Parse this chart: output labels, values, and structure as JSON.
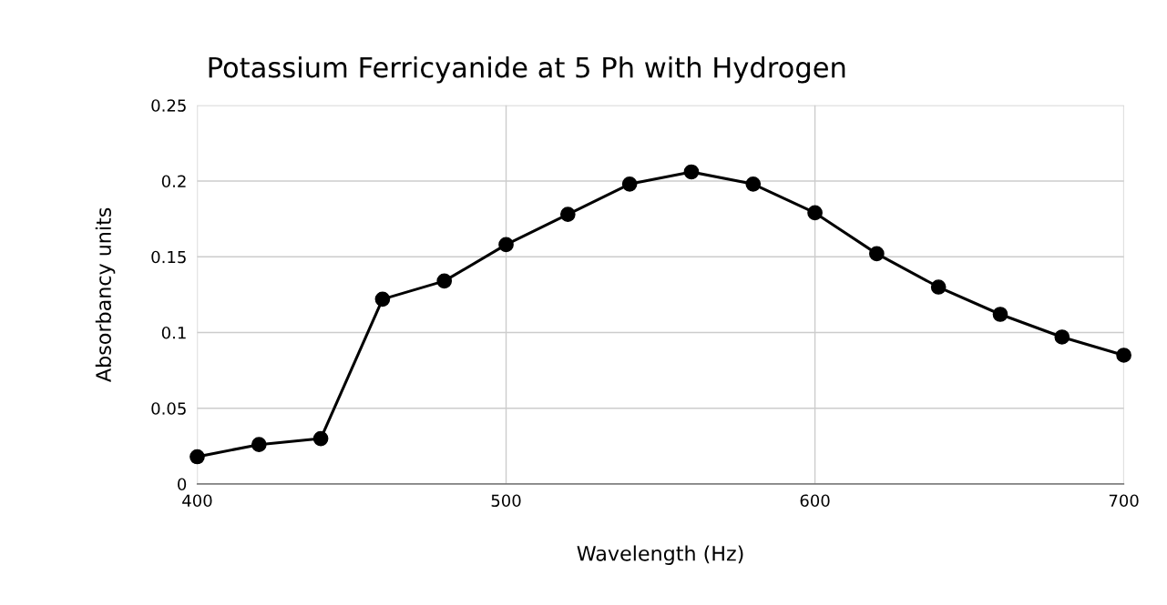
{
  "chart_data": {
    "type": "line",
    "title": "Potassium Ferricyanide at 5 Ph with Hydrogen",
    "xlabel": "Wavelength (Hz)",
    "ylabel": "Absorbancy units",
    "x": [
      400,
      420,
      440,
      460,
      480,
      500,
      520,
      540,
      560,
      580,
      600,
      620,
      640,
      660,
      680,
      700
    ],
    "series": [
      {
        "color": "#000000",
        "values": [
          0.018,
          0.026,
          0.03,
          0.122,
          0.134,
          0.158,
          0.178,
          0.198,
          0.206,
          0.198,
          0.179,
          0.152,
          0.13,
          0.112,
          0.097,
          0.085
        ]
      }
    ],
    "xlim": [
      400,
      700
    ],
    "ylim": [
      0,
      0.25
    ],
    "xticks": [
      400,
      500,
      600,
      700
    ],
    "yticks": [
      0,
      0.05,
      0.1,
      0.15,
      0.2,
      0.25
    ],
    "grid": true,
    "marker": "circle",
    "line_style": "solid"
  }
}
